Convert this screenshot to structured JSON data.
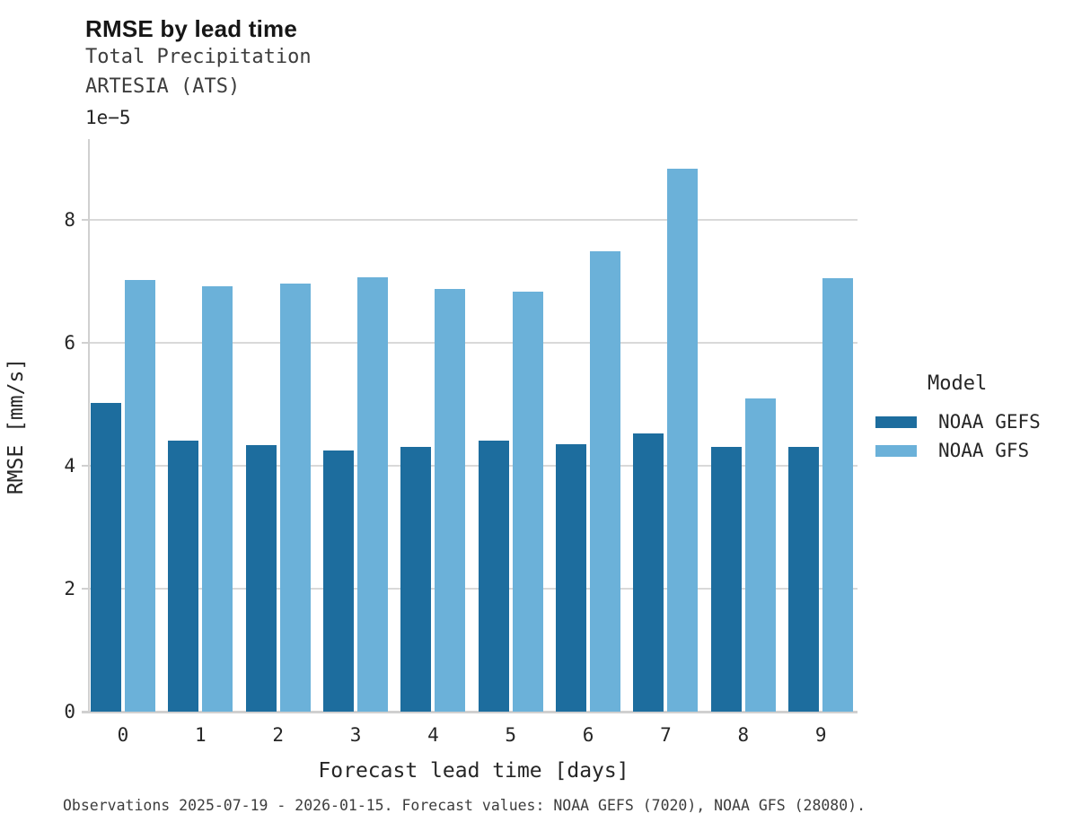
{
  "header": {
    "title": "RMSE by lead time",
    "subtitle_variable": "Total Precipitation",
    "subtitle_station": "ARTESIA (ATS)"
  },
  "axes": {
    "y_offset_text": "1e−5",
    "ylabel": "RMSE [mm/s]",
    "xlabel": "Forecast lead time [days]"
  },
  "legend": {
    "title": "Model",
    "entries": [
      {
        "label": "NOAA GEFS",
        "color": "#1d6d9e"
      },
      {
        "label": "NOAA GFS",
        "color": "#6bb1d9"
      }
    ]
  },
  "caption": "Observations 2025-07-19 - 2026-01-15. Forecast values: NOAA GEFS (7020), NOAA GFS (28080).",
  "colors": {
    "noaa_gefs": "#1d6d9e",
    "noaa_gfs": "#6bb1d9",
    "gridline": "#d9d9d9",
    "spine": "#d0d0d0",
    "text": "#262626"
  },
  "chart_data": {
    "type": "bar",
    "title": "RMSE by lead time",
    "subtitle": "Total Precipitation — ARTESIA (ATS)",
    "xlabel": "Forecast lead time [days]",
    "ylabel": "RMSE [mm/s]",
    "categories": [
      0,
      1,
      2,
      3,
      4,
      5,
      6,
      7,
      8,
      9
    ],
    "series": [
      {
        "name": "NOAA GEFS",
        "color": "#1d6d9e",
        "values": [
          5.02,
          4.4,
          4.33,
          4.25,
          4.3,
          4.41,
          4.35,
          4.52,
          4.3,
          4.31
        ]
      },
      {
        "name": "NOAA GFS",
        "color": "#6bb1d9",
        "values": [
          7.02,
          6.92,
          6.96,
          7.06,
          6.87,
          6.83,
          7.48,
          8.83,
          5.1,
          7.05
        ]
      }
    ],
    "unit_multiplier": 1e-05,
    "offset_text": "1e−5",
    "yticks": [
      0,
      2,
      4,
      6,
      8
    ],
    "ytick_labels": [
      "0",
      "2",
      "4",
      "6",
      "8"
    ],
    "ylim": [
      0,
      9.31
    ],
    "grid": true,
    "legend_title": "Model",
    "legend_position": "right"
  }
}
